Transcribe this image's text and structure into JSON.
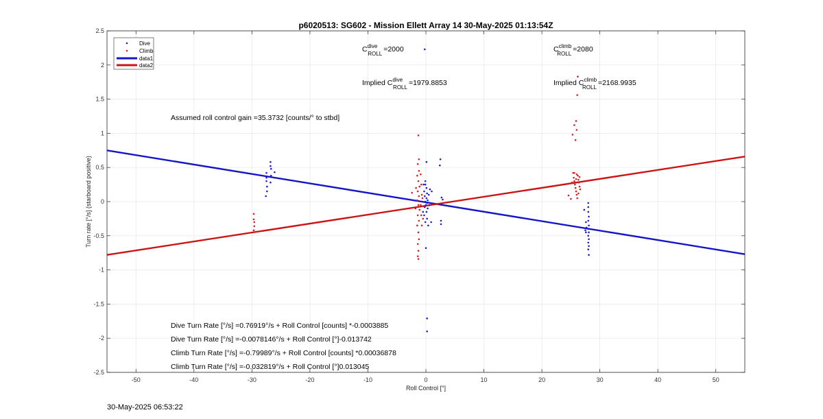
{
  "chart_data": {
    "type": "scatter",
    "title": "p6020513: SG602 - Mission Ellett Array 14 30-May-2025 01:13:54Z",
    "xlabel": "Roll Control [°]",
    "ylabel": "Turn rate [°/s] (starboard positive)",
    "xlim": [
      -55,
      55
    ],
    "ylim": [
      -2.5,
      2.5
    ],
    "xticks": [
      -50,
      -40,
      -30,
      -20,
      -10,
      0,
      10,
      20,
      30,
      40,
      50
    ],
    "yticks": [
      -2.5,
      -2,
      -1.5,
      -1,
      -0.5,
      0,
      0.5,
      1,
      1.5,
      2,
      2.5
    ],
    "grid": true,
    "legend_position": "top-left",
    "legend": [
      "Dive",
      "Climb",
      "data1",
      "data2"
    ],
    "colors": {
      "dive": "#1f1fc8",
      "climb": "#d42020",
      "data1": "#1414c8",
      "data2": "#cc1414"
    },
    "annotations": {
      "c_dive": {
        "base": "C",
        "sup": "dive",
        "sub": "ROLL",
        "value": "=2000"
      },
      "c_climb": {
        "base": "C",
        "sup": "climb",
        "sub": "ROLL",
        "value": "=2080"
      },
      "implied_dive": {
        "prefix": "Implied C",
        "sup": "dive",
        "sub": "ROLL",
        "value": "=1979.8853"
      },
      "implied_climb": {
        "prefix": "Implied C",
        "sup": "climb",
        "sub": "ROLL",
        "value": "=2168.9935"
      },
      "gain": "Assumed roll control gain =35.3732 [counts/° to stbd]",
      "eq1": "Dive Turn Rate [°/s] =0.76919°/s + Roll Control [counts] *-0.0003885",
      "eq2": "Dive Turn Rate [°/s] =-0.0078146°/s + Roll Control [°]-0.013742",
      "eq3": "Climb Turn Rate [°/s] =-0.79989°/s + Roll Control [counts] *0.00036878",
      "eq4": "Climb Turn Rate [°/s] =-0.032819°/s + Roll Control [°]0.013045"
    },
    "fit_lines": [
      {
        "name": "data1",
        "x": [
          -55,
          55
        ],
        "y": [
          0.75,
          -0.77
        ]
      },
      {
        "name": "data2",
        "x": [
          -55,
          55
        ],
        "y": [
          -0.78,
          0.66
        ]
      }
    ],
    "series": [
      {
        "name": "Dive",
        "points": [
          [
            -27.5,
            0.42
          ],
          [
            -27.5,
            0.35
          ],
          [
            -27.5,
            0.3
          ],
          [
            -27.4,
            0.22
          ],
          [
            -27.4,
            0.15
          ],
          [
            -27.6,
            0.08
          ],
          [
            -26.8,
            0.58
          ],
          [
            -26.8,
            0.52
          ],
          [
            -26.7,
            0.48
          ],
          [
            -26.7,
            0.38
          ],
          [
            -26.8,
            0.28
          ],
          [
            -26.1,
            0.43
          ],
          [
            -26.1,
            0.35
          ],
          [
            -0.2,
            2.23
          ],
          [
            -0.1,
            0.3
          ],
          [
            -0.1,
            0.25
          ],
          [
            0.1,
            0.2
          ],
          [
            -0.3,
            0.15
          ],
          [
            0.2,
            0.12
          ],
          [
            -0.2,
            0.08
          ],
          [
            0.1,
            0.05
          ],
          [
            0.3,
            0.02
          ],
          [
            -0.1,
            0.0
          ],
          [
            0.2,
            -0.02
          ],
          [
            0.0,
            -0.05
          ],
          [
            -0.2,
            -0.08
          ],
          [
            0.3,
            -0.1
          ],
          [
            0.1,
            -0.15
          ],
          [
            -0.3,
            -0.2
          ],
          [
            0.2,
            -0.25
          ],
          [
            -0.1,
            -0.3
          ],
          [
            0.4,
            -0.35
          ],
          [
            -0.4,
            0.25
          ],
          [
            0.5,
            0.1
          ],
          [
            0.6,
            -0.05
          ],
          [
            -0.5,
            -0.15
          ],
          [
            0.7,
            0.18
          ],
          [
            0.0,
            -0.68
          ],
          [
            0.1,
            0.58
          ],
          [
            0.2,
            -1.71
          ],
          [
            0.2,
            -1.9
          ],
          [
            1.0,
            0.15
          ],
          [
            0.9,
            -0.3
          ],
          [
            2.5,
            0.62
          ],
          [
            2.4,
            0.53
          ],
          [
            2.7,
            0.06
          ],
          [
            2.9,
            0.03
          ],
          [
            2.6,
            -0.28
          ],
          [
            2.6,
            -0.33
          ],
          [
            28.0,
            -0.02
          ],
          [
            28.0,
            -0.08
          ],
          [
            28.0,
            -0.15
          ],
          [
            28.1,
            -0.22
          ],
          [
            28.0,
            -0.28
          ],
          [
            28.1,
            -0.35
          ],
          [
            28.0,
            -0.4
          ],
          [
            28.1,
            -0.45
          ],
          [
            28.0,
            -0.5
          ],
          [
            28.1,
            -0.55
          ],
          [
            28.0,
            -0.6
          ],
          [
            28.1,
            -0.65
          ],
          [
            28.0,
            -0.7
          ],
          [
            28.1,
            -0.78
          ],
          [
            27.6,
            -0.3
          ],
          [
            27.7,
            -0.38
          ],
          [
            27.5,
            -0.42
          ],
          [
            27.6,
            -0.45
          ],
          [
            27.3,
            -0.12
          ]
        ]
      },
      {
        "name": "Climb",
        "points": [
          [
            -29.7,
            -0.18
          ],
          [
            -29.7,
            -0.26
          ],
          [
            -29.6,
            -0.3
          ],
          [
            -29.6,
            -0.36
          ],
          [
            -29.7,
            -0.42
          ],
          [
            -1.3,
            0.97
          ],
          [
            -1.2,
            0.62
          ],
          [
            -1.4,
            0.55
          ],
          [
            -1.2,
            0.45
          ],
          [
            -1.5,
            0.38
          ],
          [
            -1.3,
            0.3
          ],
          [
            -1.1,
            0.22
          ],
          [
            -1.4,
            0.15
          ],
          [
            -1.2,
            0.08
          ],
          [
            -1.5,
            0.02
          ],
          [
            -1.3,
            -0.05
          ],
          [
            -1.1,
            -0.12
          ],
          [
            -1.4,
            -0.2
          ],
          [
            -1.2,
            -0.28
          ],
          [
            -1.5,
            -0.35
          ],
          [
            -1.3,
            -0.45
          ],
          [
            -1.2,
            -0.55
          ],
          [
            -1.4,
            -0.62
          ],
          [
            -1.3,
            -0.72
          ],
          [
            -1.4,
            -0.8
          ],
          [
            -1.3,
            -0.84
          ],
          [
            -0.9,
            0.4
          ],
          [
            -0.8,
            0.25
          ],
          [
            -0.7,
            0.1
          ],
          [
            -0.9,
            -0.05
          ],
          [
            -0.8,
            -0.2
          ],
          [
            -0.7,
            -0.35
          ],
          [
            -1.7,
            0.2
          ],
          [
            -1.8,
            -0.1
          ],
          [
            -2.4,
            0.13
          ],
          [
            -0.6,
            0.05
          ],
          [
            -0.5,
            -0.25
          ],
          [
            25.3,
            0.98
          ],
          [
            25.6,
            1.12
          ],
          [
            25.9,
            1.18
          ],
          [
            26.0,
            1.05
          ],
          [
            25.8,
            0.9
          ],
          [
            26.1,
            1.56
          ],
          [
            26.2,
            1.83
          ],
          [
            25.4,
            0.42
          ],
          [
            25.5,
            0.35
          ],
          [
            25.6,
            0.3
          ],
          [
            25.7,
            0.25
          ],
          [
            25.8,
            0.2
          ],
          [
            25.9,
            0.15
          ],
          [
            26.0,
            0.1
          ],
          [
            26.1,
            0.05
          ],
          [
            26.2,
            0.38
          ],
          [
            26.3,
            0.32
          ],
          [
            26.4,
            0.28
          ],
          [
            26.5,
            0.22
          ],
          [
            26.6,
            0.18
          ],
          [
            25.6,
            0.42
          ],
          [
            26.0,
            0.4
          ],
          [
            25.2,
            0.28
          ],
          [
            26.3,
            0.12
          ],
          [
            24.6,
            0.09
          ],
          [
            25.0,
            0.04
          ],
          [
            25.9,
            0.33
          ],
          [
            26.5,
            0.36
          ]
        ]
      }
    ],
    "timestamp": "30-May-2025 06:53:22"
  }
}
